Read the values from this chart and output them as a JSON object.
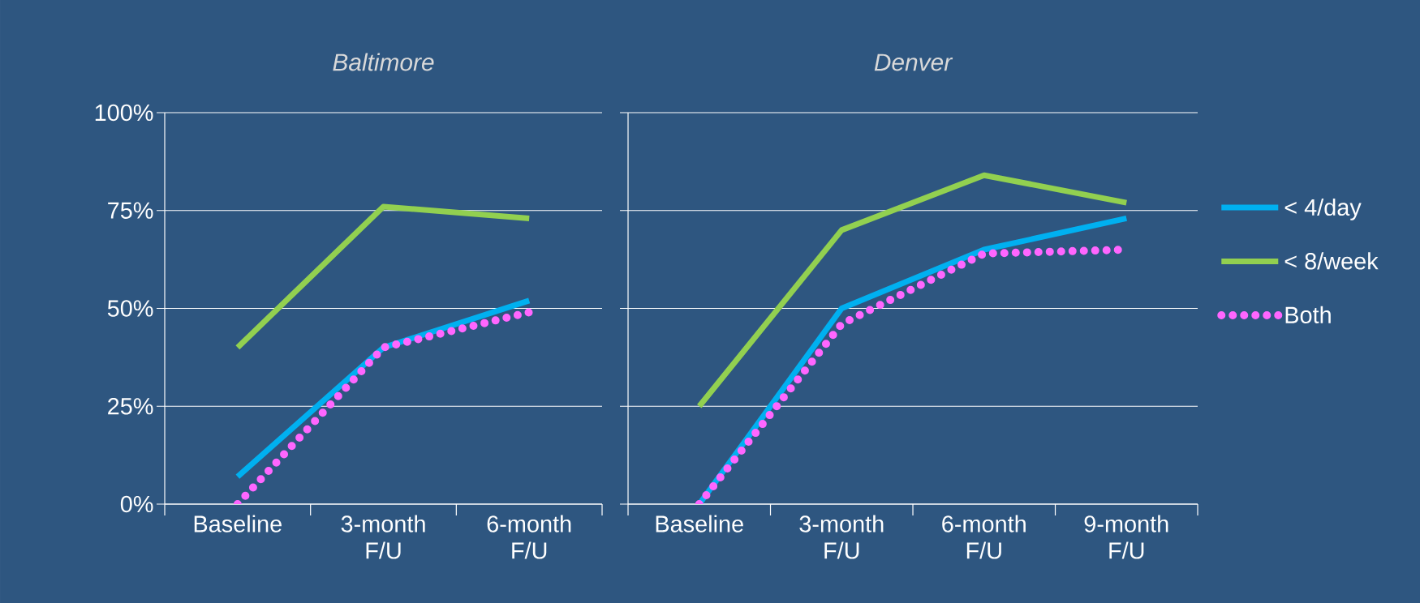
{
  "chart_data": [
    {
      "type": "line",
      "title": "Baltimore",
      "categories": [
        "Baseline",
        "3-month F/U",
        "6-month F/U"
      ],
      "series": [
        {
          "color": "#00b0f0",
          "values": [
            7,
            40,
            52
          ],
          "line_style": "solid"
        },
        {
          "color": "#92d050",
          "values": [
            40,
            76,
            73
          ],
          "line_style": "solid"
        },
        {
          "color": "#ff66ff",
          "values": [
            0,
            40,
            49
          ],
          "line_style": "dotted"
        }
      ],
      "ylim": [
        0,
        100
      ],
      "yticks": [
        {
          "value": 0,
          "label": "0%"
        },
        {
          "value": 25,
          "label": "25%"
        },
        {
          "value": 50,
          "label": "50%"
        },
        {
          "value": 75,
          "label": "75%"
        },
        {
          "value": 100,
          "label": "100%"
        }
      ],
      "grid": "y",
      "marker": "none"
    },
    {
      "type": "line",
      "title": "Denver",
      "categories": [
        "Baseline",
        "3-month F/U",
        "6-month F/U",
        "9-month F/U"
      ],
      "series": [
        {
          "name": "< 4/day",
          "color": "#00b0f0",
          "values": [
            0,
            50,
            65,
            73
          ],
          "line_style": "solid"
        },
        {
          "name": "< 8/week",
          "color": "#92d050",
          "values": [
            25,
            70,
            84,
            77
          ],
          "line_style": "solid"
        },
        {
          "name": "Both",
          "color": "#ff66ff",
          "values": [
            0,
            46,
            64,
            65
          ],
          "line_style": "dotted"
        }
      ],
      "ylim": [
        0,
        100
      ],
      "yticks": [
        0,
        25,
        50,
        75,
        100
      ],
      "grid": "y",
      "legend": "right",
      "tick_labels": "x",
      "marker": "none"
    }
  ]
}
